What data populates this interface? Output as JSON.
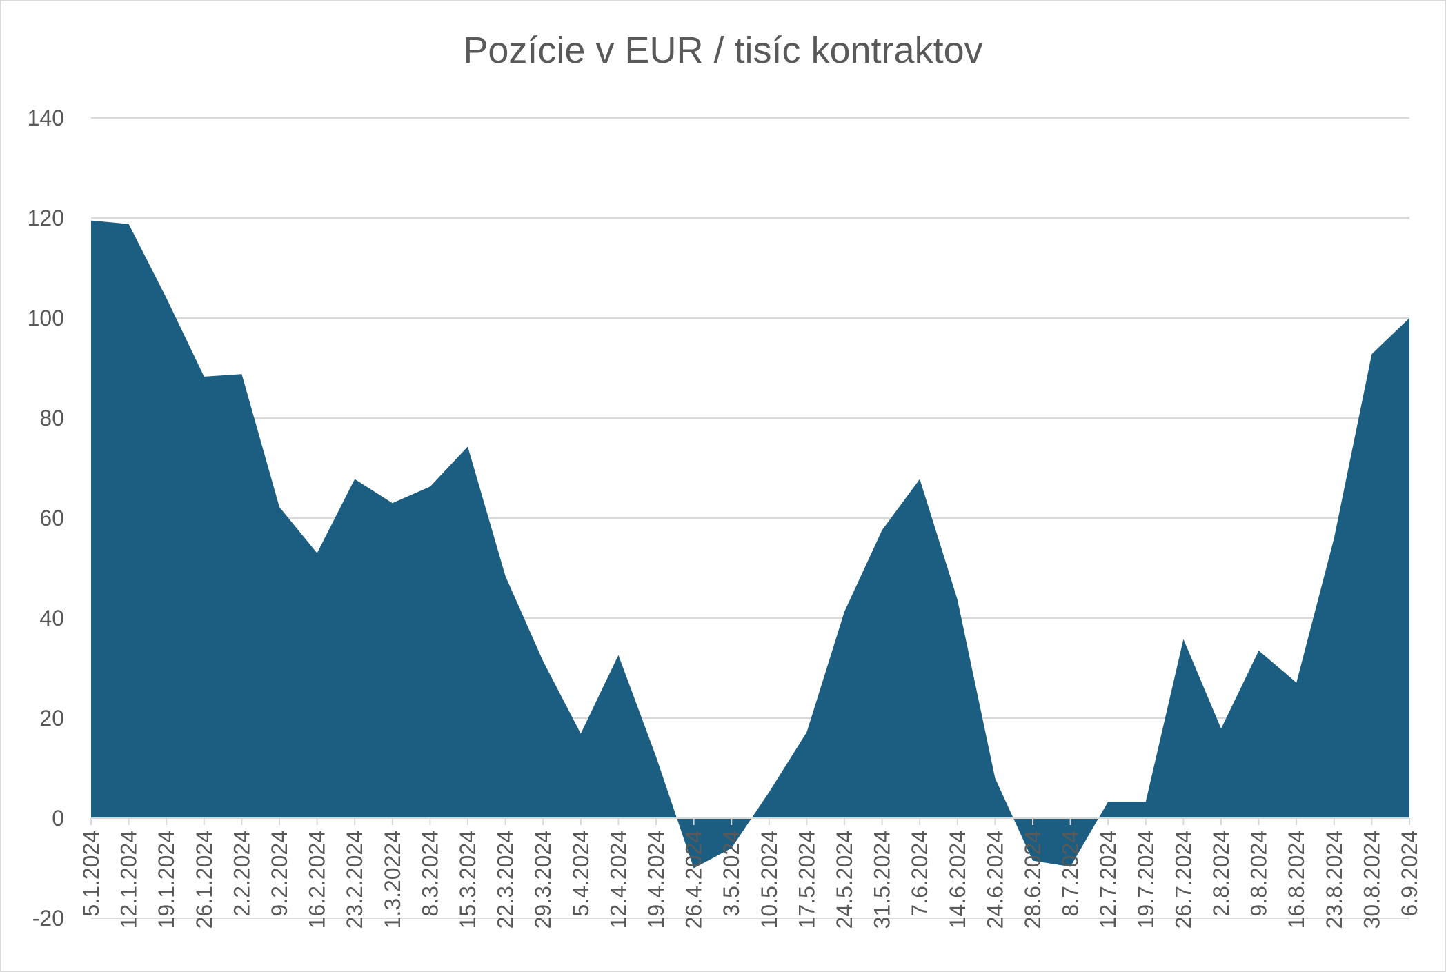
{
  "chart_data": {
    "type": "area",
    "title": "Pozície v EUR / tisíc kontraktov",
    "xlabel": "",
    "ylabel": "",
    "ylim": [
      -20,
      140
    ],
    "yticks": [
      "-20",
      "0",
      "20",
      "40",
      "60",
      "80",
      "100",
      "120",
      "140"
    ],
    "grid": true,
    "legend": "none",
    "area_color": "#1b5e82",
    "categories": [
      "5.1.2024",
      "12.1.2024",
      "19.1.2024",
      "26.1.2024",
      "2.2.2024",
      "9.2.2024",
      "16.2.2024",
      "23.2.2024",
      "1.3.20224",
      "8.3.2024",
      "15.3.2024",
      "22.3.2024",
      "29.3.2024",
      "5.4.2024",
      "12.4.2024",
      "19.4.2024",
      "26.4.2024",
      "3.5.2024",
      "10.5.2024",
      "17.5.2024",
      "24.5.2024",
      "31.5.2024",
      "7.6.2024",
      "14.6.2024",
      "24.6.2024",
      "28.6.2024",
      "8.7.2024",
      "12.7.2024",
      "19.7.2024",
      "26.7.2024",
      "2.8.2024",
      "9.8.2024",
      "16.8.2024",
      "23.8.2024",
      "30.8.2024",
      "6.9.2024"
    ],
    "series": [
      {
        "values": [
          119.5,
          118.8,
          104,
          88.3,
          88.8,
          62.2,
          53,
          67.8,
          63,
          66.3,
          74.3,
          48.4,
          31.4,
          16.9,
          32.6,
          12.3,
          -10,
          -6,
          5.2,
          17.2,
          41.3,
          57.6,
          67.8,
          43.7,
          8,
          -8.5,
          -9.7,
          3.3,
          3.3,
          35.8,
          17.9,
          33.5,
          27.1,
          56,
          92.8,
          100
        ]
      }
    ]
  }
}
